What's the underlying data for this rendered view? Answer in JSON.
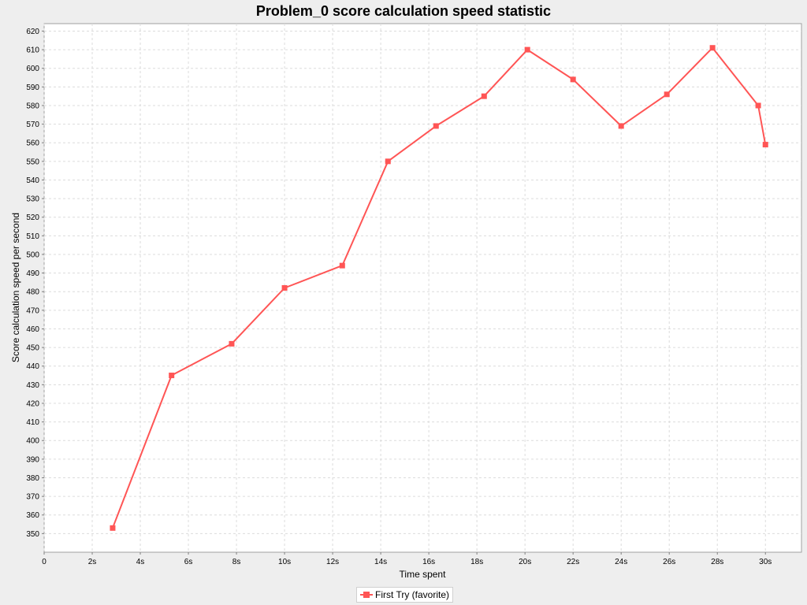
{
  "chart_data": {
    "type": "line",
    "title": "Problem_0 score calculation speed statistic",
    "xlabel": "Time spent",
    "ylabel": "Score calculation speed per second",
    "xlim": [
      0,
      31.5
    ],
    "ylim": [
      340,
      624
    ],
    "x_ticks": [
      {
        "value": 0,
        "label": "0"
      },
      {
        "value": 2,
        "label": "2s"
      },
      {
        "value": 4,
        "label": "4s"
      },
      {
        "value": 6,
        "label": "6s"
      },
      {
        "value": 8,
        "label": "8s"
      },
      {
        "value": 10,
        "label": "10s"
      },
      {
        "value": 12,
        "label": "12s"
      },
      {
        "value": 14,
        "label": "14s"
      },
      {
        "value": 16,
        "label": "16s"
      },
      {
        "value": 18,
        "label": "18s"
      },
      {
        "value": 20,
        "label": "20s"
      },
      {
        "value": 22,
        "label": "22s"
      },
      {
        "value": 24,
        "label": "24s"
      },
      {
        "value": 26,
        "label": "26s"
      },
      {
        "value": 28,
        "label": "28s"
      },
      {
        "value": 30,
        "label": "30s"
      }
    ],
    "y_ticks": [
      350,
      360,
      370,
      380,
      390,
      400,
      410,
      420,
      430,
      440,
      450,
      460,
      470,
      480,
      490,
      500,
      510,
      520,
      530,
      540,
      550,
      560,
      570,
      580,
      590,
      600,
      610,
      620
    ],
    "grid": true,
    "legend_position": "bottom-center",
    "series": [
      {
        "name": "First Try (favorite)",
        "color": "#ff5555",
        "marker": "square",
        "x": [
          2.85,
          5.3,
          7.8,
          10.0,
          12.4,
          14.3,
          16.3,
          18.3,
          20.1,
          22.0,
          24.0,
          25.9,
          27.8,
          29.7,
          30.0
        ],
        "y": [
          353,
          435,
          452,
          482,
          494,
          550,
          569,
          585,
          610,
          594,
          569,
          586,
          611,
          580,
          559
        ]
      }
    ]
  }
}
